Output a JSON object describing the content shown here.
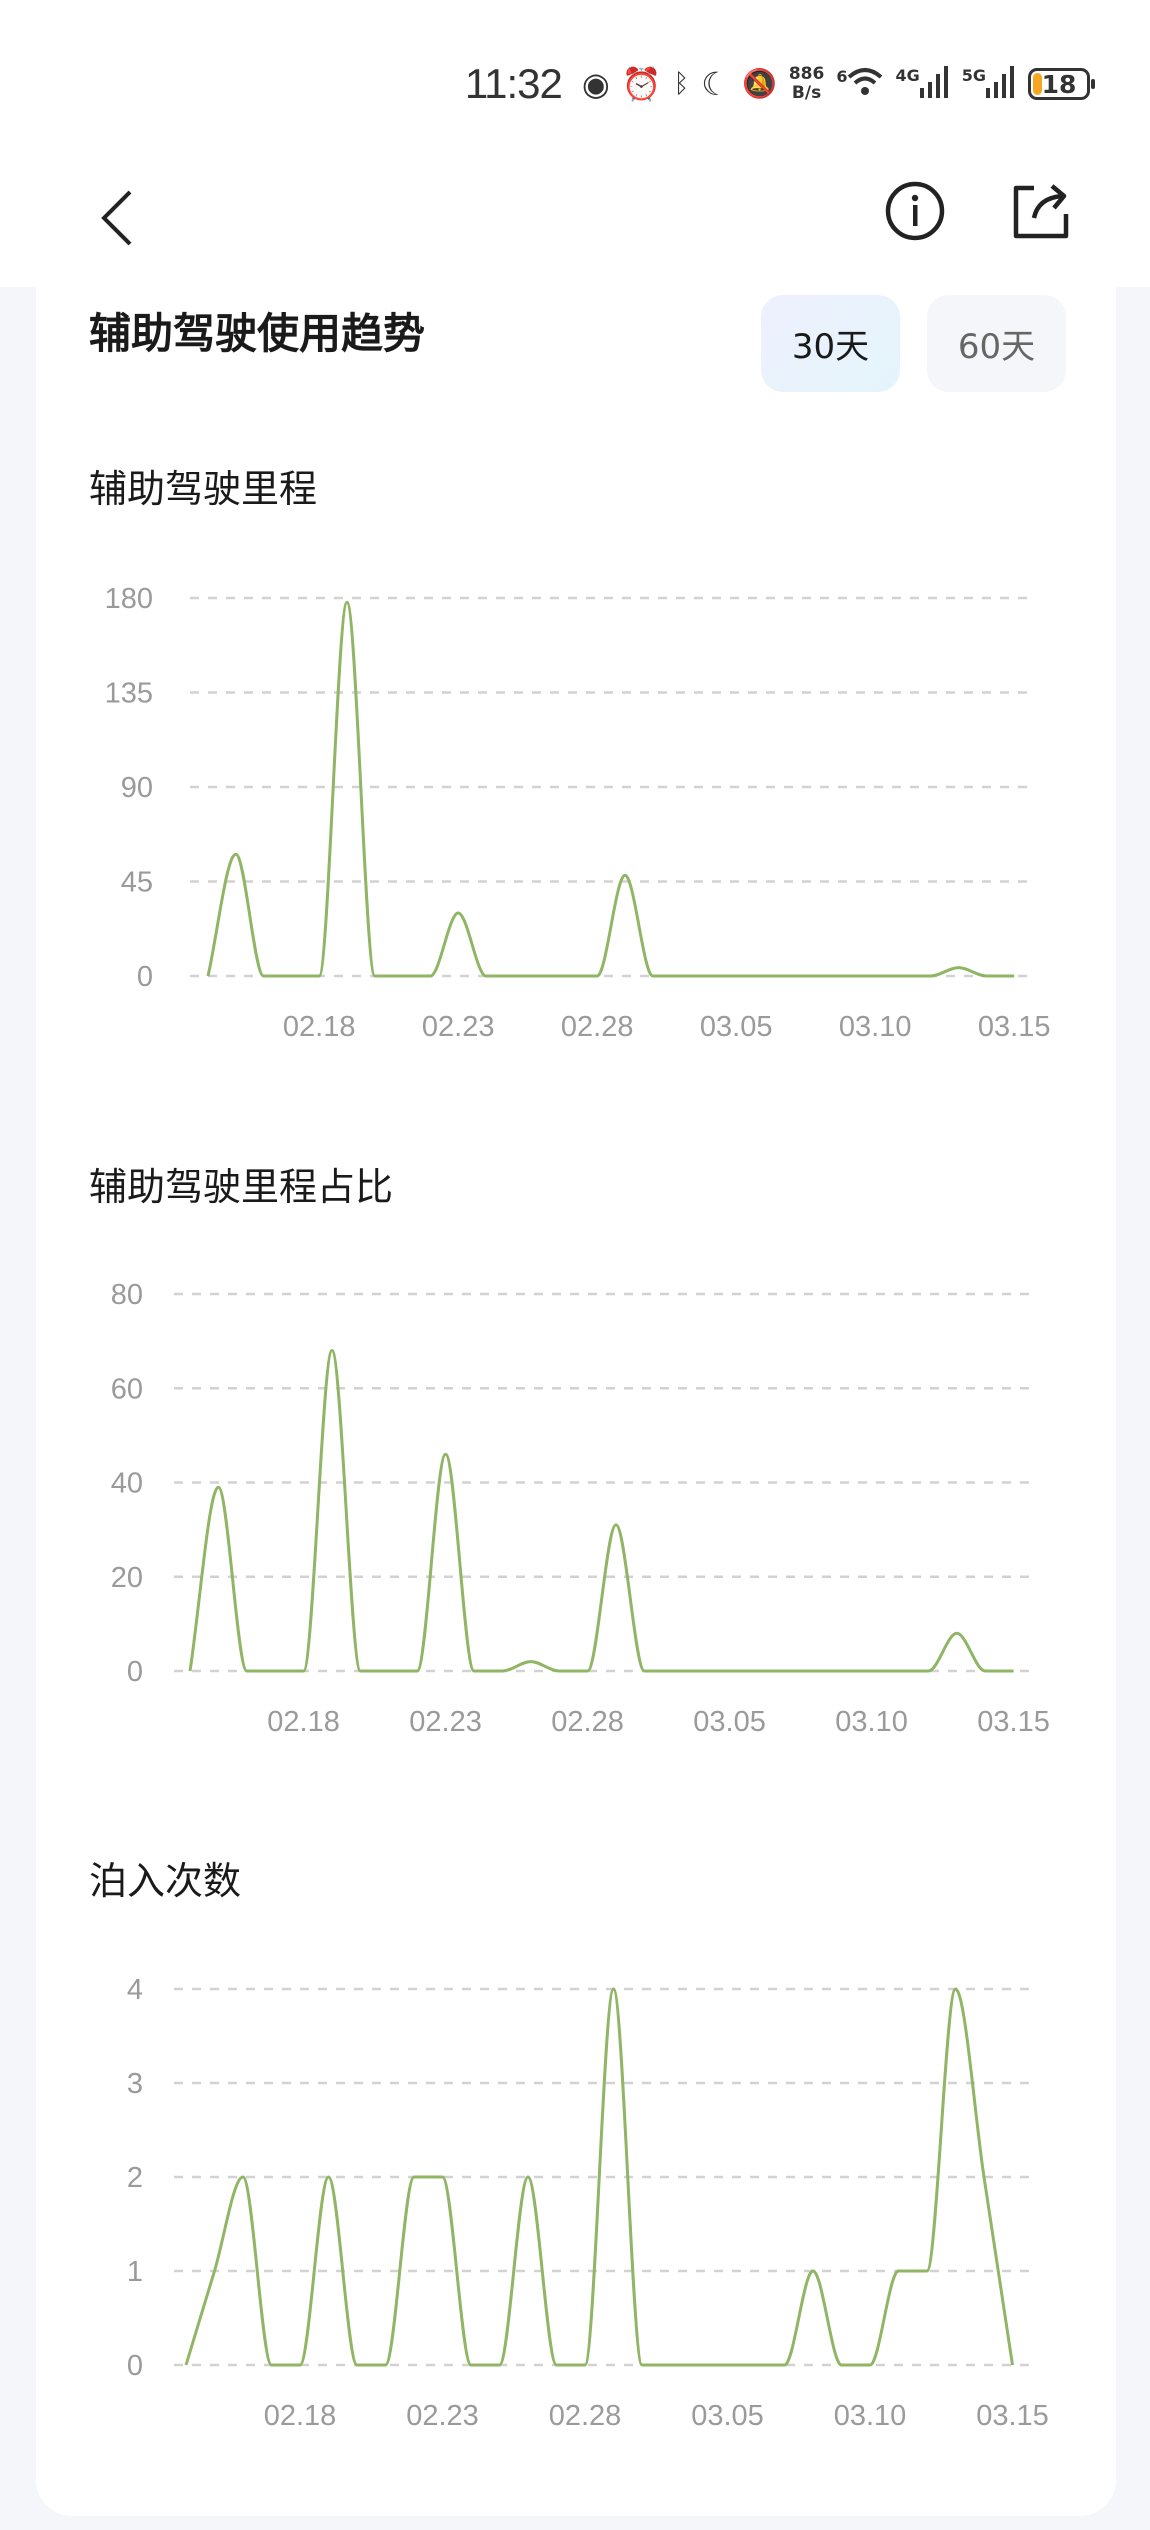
{
  "status_bar": {
    "time": "11:32",
    "net_speed_value": "886",
    "net_speed_unit": "B/s",
    "wifi_label": "6",
    "sim1_label": "4G",
    "sim2_label": "5G",
    "battery": "18",
    "icons": [
      "eye-icon",
      "alarm-icon",
      "bluetooth-icon",
      "moon-icon",
      "bell-off-icon",
      "wifi-icon",
      "signal-icon",
      "battery-icon"
    ]
  },
  "header": {
    "back_icon": "chevron-left-icon",
    "info_icon": "info-circle-icon",
    "share_icon": "share-icon"
  },
  "card": {
    "title": "辅助驾驶使用趋势",
    "range_options": [
      {
        "label": "30天",
        "selected": true
      },
      {
        "label": "60天",
        "selected": false
      }
    ]
  },
  "colors": {
    "line": "#8fb565",
    "grid": "#d2d2d2",
    "axis_text": "#9a9a9a",
    "selected_button": "#eaf2fd"
  },
  "chart_data": [
    {
      "type": "line",
      "title": "辅助驾驶里程",
      "x": [
        "02.14",
        "02.15",
        "02.16",
        "02.17",
        "02.18",
        "02.19",
        "02.20",
        "02.21",
        "02.22",
        "02.23",
        "02.24",
        "02.25",
        "02.26",
        "02.27",
        "02.28",
        "03.01",
        "03.02",
        "03.03",
        "03.04",
        "03.05",
        "03.06",
        "03.07",
        "03.08",
        "03.09",
        "03.10",
        "03.11",
        "03.12",
        "03.13",
        "03.14",
        "03.15"
      ],
      "values": [
        0,
        58,
        0,
        0,
        0,
        178,
        0,
        0,
        0,
        30,
        0,
        0,
        0,
        0,
        0,
        48,
        0,
        0,
        0,
        0,
        0,
        0,
        0,
        0,
        0,
        0,
        0,
        4,
        0,
        0
      ],
      "yticks": [
        "0",
        "45",
        "90",
        "135",
        "180"
      ],
      "ylim": [
        0,
        180
      ],
      "xticks": [
        "02.18",
        "02.23",
        "02.28",
        "03.05",
        "03.10",
        "03.15"
      ],
      "grid": "horizontal dashed"
    },
    {
      "type": "line",
      "title": "辅助驾驶里程占比",
      "x": [
        "02.14",
        "02.15",
        "02.16",
        "02.17",
        "02.18",
        "02.19",
        "02.20",
        "02.21",
        "02.22",
        "02.23",
        "02.24",
        "02.25",
        "02.26",
        "02.27",
        "02.28",
        "03.01",
        "03.02",
        "03.03",
        "03.04",
        "03.05",
        "03.06",
        "03.07",
        "03.08",
        "03.09",
        "03.10",
        "03.11",
        "03.12",
        "03.13",
        "03.14",
        "03.15"
      ],
      "values": [
        0,
        39,
        0,
        0,
        0,
        68,
        0,
        0,
        0,
        46,
        0,
        0,
        2,
        0,
        0,
        31,
        0,
        0,
        0,
        0,
        0,
        0,
        0,
        0,
        0,
        0,
        0,
        8,
        0,
        0
      ],
      "yticks": [
        "0",
        "20",
        "40",
        "60",
        "80"
      ],
      "ylim": [
        0,
        80
      ],
      "xticks": [
        "02.18",
        "02.23",
        "02.28",
        "03.05",
        "03.10",
        "03.15"
      ],
      "grid": "horizontal dashed"
    },
    {
      "type": "line",
      "title": "泊入次数",
      "x": [
        "02.14",
        "02.15",
        "02.16",
        "02.17",
        "02.18",
        "02.19",
        "02.20",
        "02.21",
        "02.22",
        "02.23",
        "02.24",
        "02.25",
        "02.26",
        "02.27",
        "02.28",
        "03.01",
        "03.02",
        "03.03",
        "03.04",
        "03.05",
        "03.06",
        "03.07",
        "03.08",
        "03.09",
        "03.10",
        "03.11",
        "03.12",
        "03.13",
        "03.14",
        "03.15"
      ],
      "values": [
        0,
        1,
        2,
        0,
        0,
        2,
        0,
        0,
        2,
        2,
        0,
        0,
        2,
        0,
        0,
        4,
        0,
        0,
        0,
        0,
        0,
        0,
        1,
        0,
        0,
        1,
        1,
        4,
        2,
        0
      ],
      "yticks": [
        "0",
        "1",
        "2",
        "3",
        "4"
      ],
      "ylim": [
        0,
        4
      ],
      "xticks": [
        "02.18",
        "02.23",
        "02.28",
        "03.05",
        "03.10",
        "03.15"
      ],
      "grid": "horizontal dashed"
    }
  ]
}
